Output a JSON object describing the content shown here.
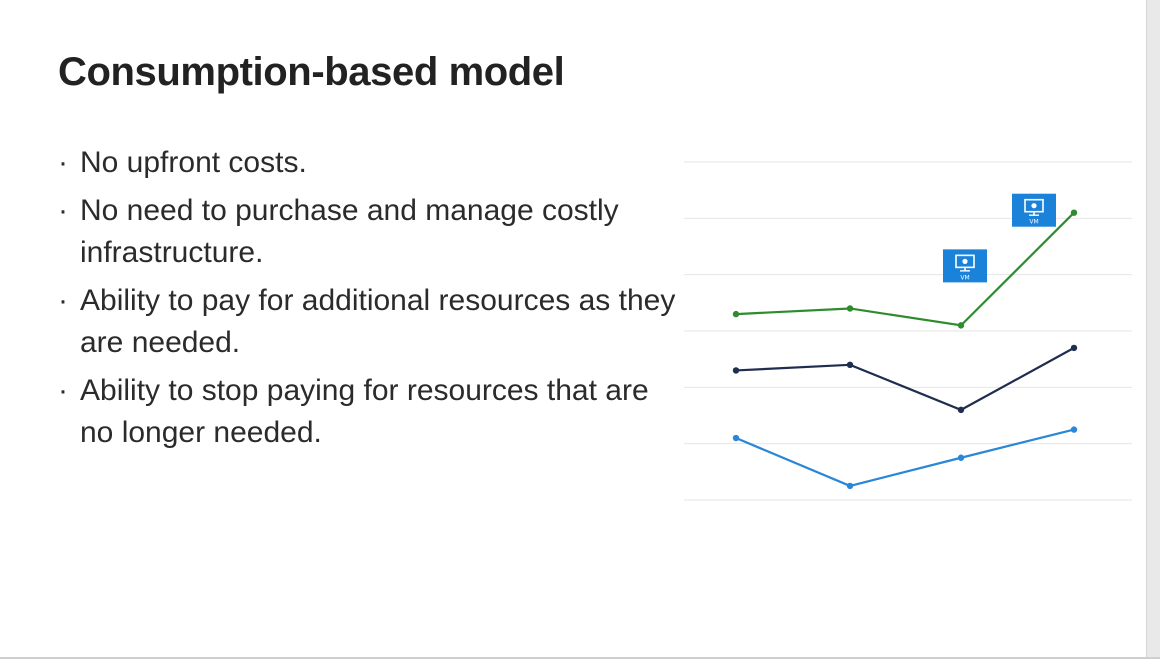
{
  "slide": {
    "title": "Consumption-based model",
    "bullets": [
      "No upfront costs.",
      "No need to purchase and manage costly infrastructure.",
      "Ability to pay for additional resources as they are needed.",
      "Ability to stop paying for resources that are no longer needed."
    ],
    "bullet_glyph": "·"
  },
  "chart_data": {
    "type": "line",
    "title": "",
    "xlabel": "",
    "ylabel": "",
    "x": [
      1,
      2,
      3,
      4
    ],
    "ylim": [
      0,
      6
    ],
    "grid": true,
    "series": [
      {
        "name": "green",
        "color": "#2e8b2e",
        "values": [
          3.3,
          3.4,
          3.1,
          5.1
        ]
      },
      {
        "name": "navy",
        "color": "#1f2d4f",
        "values": [
          2.3,
          2.4,
          1.6,
          2.7
        ]
      },
      {
        "name": "blue",
        "color": "#2a86d6",
        "values": [
          1.1,
          0.25,
          0.75,
          1.25
        ]
      }
    ],
    "annotations": [
      {
        "icon": "vm-icon",
        "label": "VM",
        "at_x": 3,
        "at_series": "green"
      },
      {
        "icon": "vm-icon",
        "label": "VM",
        "at_x": 4,
        "at_series": "green"
      }
    ],
    "vm_color": "#1a82d8"
  }
}
